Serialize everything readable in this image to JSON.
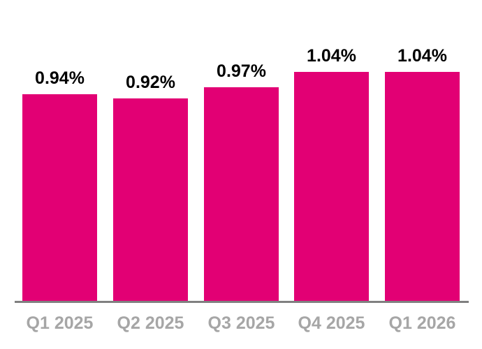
{
  "chart_data": {
    "type": "bar",
    "categories": [
      "Q1 2025",
      "Q2 2025",
      "Q3 2025",
      "Q4 2025",
      "Q1 2026"
    ],
    "values": [
      0.94,
      0.92,
      0.97,
      1.04,
      1.04
    ],
    "value_labels": [
      "0.94%",
      "0.92%",
      "0.97%",
      "1.04%",
      "1.04%"
    ],
    "title": "",
    "xlabel": "",
    "ylabel": "",
    "ylim": [
      0,
      1.37
    ],
    "grid": false,
    "legend": false,
    "bar_color": "#E20074",
    "value_label_color": "#000000",
    "tick_label_color": "#A6A6A6",
    "axis_line_color": "#808080"
  }
}
